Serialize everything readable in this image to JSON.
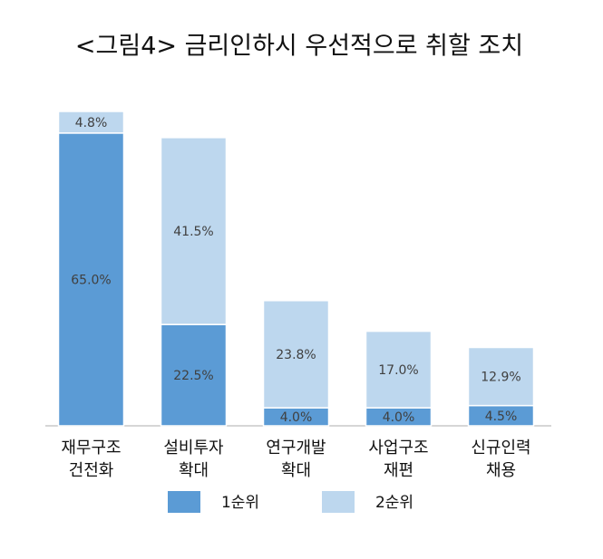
{
  "chart_data": {
    "type": "stacked_bar",
    "title": "<그림4> 금리인하시 우선적으로 취할 조치",
    "categories": [
      [
        "재무구조",
        "건전화"
      ],
      [
        "설비투자",
        "확대"
      ],
      [
        "연구개발",
        "확대"
      ],
      [
        "사업구조",
        "재편"
      ],
      [
        "신규인력",
        "채용"
      ]
    ],
    "series": [
      {
        "name": "1순위",
        "color": "#5b9bd5",
        "values": [
          65.0,
          22.5,
          4.0,
          4.0,
          4.5
        ],
        "value_labels": [
          "65.0%",
          "22.5%",
          "4.0%",
          "4.0%",
          "4.5%"
        ]
      },
      {
        "name": "2순위",
        "color": "#bdd7ee",
        "values": [
          4.8,
          41.5,
          23.8,
          17.0,
          12.9
        ],
        "value_labels": [
          "4.8%",
          "41.5%",
          "23.8%",
          "17.0%",
          "12.9%"
        ]
      }
    ],
    "ylim": [
      0,
      70
    ]
  }
}
